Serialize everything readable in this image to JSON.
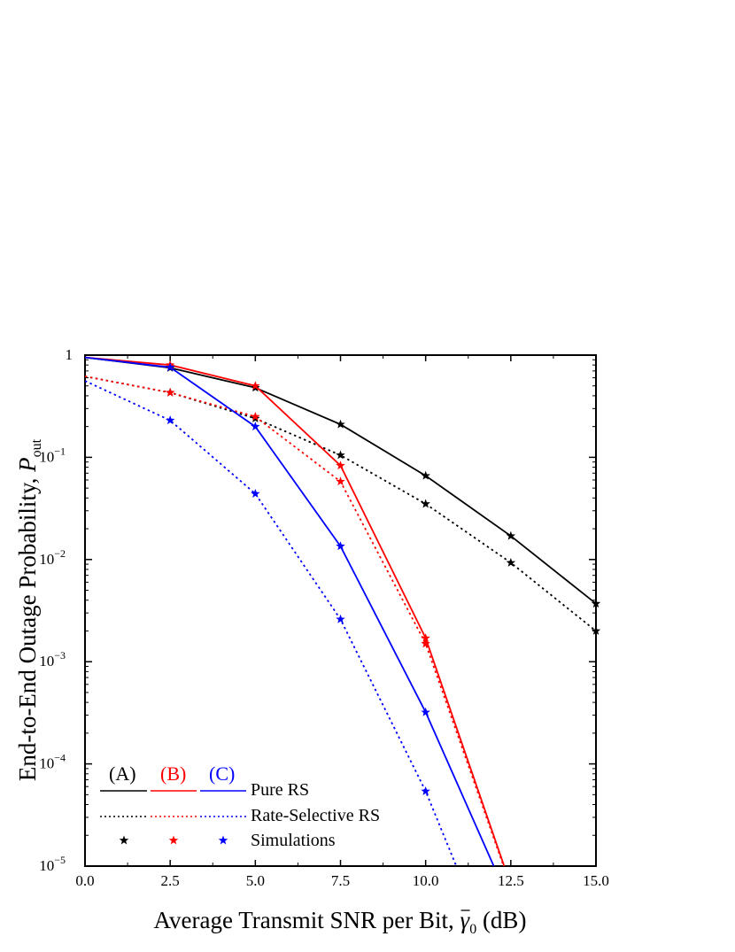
{
  "chart_data": {
    "type": "line",
    "xlabel": "Average Transmit SNR per Bit, ",
    "xlabel_symbol": "γ",
    "xlabel_sub": "0",
    "xlabel_unit": " (dB)",
    "ylabel": "End-to-End Outage Probability, ",
    "ylabel_symbol": "P",
    "ylabel_sub": "out",
    "xlim": [
      0,
      15
    ],
    "ylim": [
      1e-05,
      1
    ],
    "yscale": "log",
    "grid": false,
    "x_ticks": [
      "0.0",
      "2.5",
      "5.0",
      "7.5",
      "10.0",
      "12.5",
      "15.0"
    ],
    "y_ticks": [
      {
        "base": "1",
        "exp": ""
      },
      {
        "base": "10",
        "exp": "−1"
      },
      {
        "base": "10",
        "exp": "−2"
      },
      {
        "base": "10",
        "exp": "−3"
      },
      {
        "base": "10",
        "exp": "−4"
      },
      {
        "base": "10",
        "exp": "−5"
      }
    ],
    "legend": {
      "placement": "bottom-left",
      "headers": [
        "(A)",
        "(B)",
        "(C)"
      ],
      "rows": [
        "Pure RS",
        "Rate-Selective RS",
        "Simulations"
      ]
    },
    "colors": {
      "A": "#000000",
      "B": "#ff0000",
      "C": "#0000ff"
    },
    "series": [
      {
        "group": "A",
        "style": "solid",
        "x": [
          0,
          2.5,
          5,
          7.5,
          10,
          12.5,
          15
        ],
        "y": [
          0.95,
          0.75,
          0.48,
          0.21,
          0.066,
          0.017,
          0.0037
        ]
      },
      {
        "group": "A",
        "style": "dotted",
        "x": [
          0,
          2.5,
          5,
          7.5,
          10,
          12.5,
          15
        ],
        "y": [
          0.62,
          0.43,
          0.24,
          0.105,
          0.035,
          0.0093,
          0.002
        ]
      },
      {
        "group": "B",
        "style": "solid",
        "x": [
          0,
          2.5,
          5,
          7.5,
          10,
          12.5
        ],
        "y": [
          0.95,
          0.8,
          0.5,
          0.083,
          0.0017,
          6.5e-06
        ]
      },
      {
        "group": "B",
        "style": "dotted",
        "x": [
          0,
          2.5,
          5,
          7.5,
          10,
          12.5
        ],
        "y": [
          0.62,
          0.43,
          0.25,
          0.058,
          0.0015,
          6.3e-06
        ]
      },
      {
        "group": "C",
        "style": "solid",
        "x": [
          0,
          2.5,
          5,
          7.5,
          10,
          12.0
        ],
        "y": [
          0.95,
          0.76,
          0.2,
          0.0135,
          0.00032,
          1e-05
        ]
      },
      {
        "group": "C",
        "style": "dotted",
        "x": [
          0,
          2.5,
          5,
          7.5,
          10,
          10.9
        ],
        "y": [
          0.56,
          0.23,
          0.044,
          0.0026,
          5.4e-05,
          1e-05
        ]
      }
    ],
    "simulations": [
      {
        "group": "A",
        "x": [
          2.5,
          5,
          7.5,
          10,
          12.5,
          15
        ],
        "y": [
          0.75,
          0.48,
          0.21,
          0.066,
          0.017,
          0.0037
        ]
      },
      {
        "group": "A",
        "x": [
          2.5,
          5,
          7.5,
          10,
          12.5,
          15
        ],
        "y": [
          0.43,
          0.24,
          0.105,
          0.035,
          0.0093,
          0.002
        ]
      },
      {
        "group": "B",
        "x": [
          2.5,
          5,
          7.5,
          10
        ],
        "y": [
          0.8,
          0.5,
          0.083,
          0.0017
        ]
      },
      {
        "group": "B",
        "x": [
          2.5,
          5,
          7.5,
          10
        ],
        "y": [
          0.43,
          0.25,
          0.058,
          0.0015
        ]
      },
      {
        "group": "C",
        "x": [
          2.5,
          5,
          7.5,
          10
        ],
        "y": [
          0.76,
          0.2,
          0.0135,
          0.00032
        ]
      },
      {
        "group": "C",
        "x": [
          2.5,
          5,
          7.5,
          10
        ],
        "y": [
          0.23,
          0.044,
          0.0026,
          5.4e-05
        ]
      }
    ]
  }
}
